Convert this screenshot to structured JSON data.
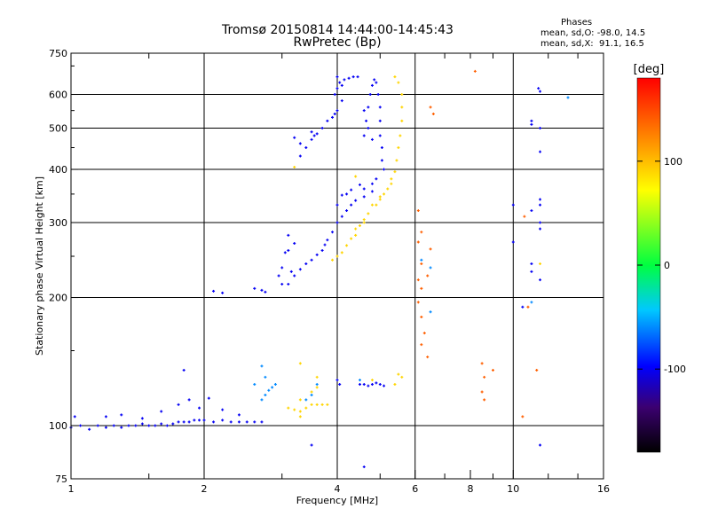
{
  "header": {
    "title_line1": "Tromsø 20150814 14:44:00-14:45:43",
    "title_line2": "RwPretec (Bp)",
    "stats_title": "Phases",
    "stats_o": "mean, sd,O: -98.0, 14.5",
    "stats_x": "mean, sd,X:  91.1, 16.5"
  },
  "colorbar": {
    "label": "[deg]",
    "ticks": [
      {
        "value": 100,
        "label": "100"
      },
      {
        "value": 0,
        "label": "0"
      },
      {
        "value": -100,
        "label": "-100"
      }
    ],
    "range": [
      -180,
      180
    ]
  },
  "chart_data": {
    "type": "scatter",
    "title": "Tromsø 20150814 14:44:00-14:45:43",
    "subtitle": "RwPretec (Bp)",
    "xlabel": "Frequency [MHz]",
    "ylabel": "Stationary phase Virtual Height [km]",
    "xscale": "log",
    "yscale": "log",
    "xlim": [
      1,
      16
    ],
    "ylim": [
      75,
      750
    ],
    "xticks": [
      1,
      2,
      4,
      6,
      8,
      10,
      16
    ],
    "yticks": [
      75,
      100,
      200,
      300,
      400,
      500,
      600,
      750
    ],
    "grid": true,
    "color_variable": "phase [deg]",
    "series": [
      {
        "color_phase": -100,
        "points": [
          [
            1.0,
            99
          ],
          [
            1.05,
            100
          ],
          [
            1.1,
            98
          ],
          [
            1.15,
            100
          ],
          [
            1.2,
            99
          ],
          [
            1.25,
            100
          ],
          [
            1.3,
            99
          ],
          [
            1.35,
            100
          ],
          [
            1.4,
            100
          ],
          [
            1.45,
            101
          ],
          [
            1.5,
            100
          ],
          [
            1.55,
            100
          ],
          [
            1.6,
            101
          ],
          [
            1.65,
            100
          ],
          [
            1.7,
            101
          ],
          [
            1.75,
            102
          ],
          [
            1.8,
            102
          ],
          [
            1.85,
            102
          ],
          [
            1.9,
            103
          ],
          [
            1.95,
            103
          ],
          [
            2.0,
            103
          ],
          [
            2.1,
            102
          ],
          [
            2.2,
            103
          ],
          [
            2.3,
            102
          ],
          [
            2.4,
            102
          ],
          [
            2.5,
            102
          ],
          [
            2.6,
            102
          ],
          [
            2.7,
            102
          ],
          [
            1.2,
            105
          ],
          [
            1.3,
            106
          ],
          [
            1.45,
            104
          ],
          [
            1.6,
            108
          ],
          [
            1.75,
            112
          ],
          [
            1.85,
            115
          ],
          [
            1.95,
            110
          ],
          [
            2.05,
            116
          ],
          [
            2.2,
            109
          ],
          [
            2.4,
            106
          ],
          [
            1.02,
            105
          ],
          [
            1.8,
            135
          ],
          [
            2.1,
            207
          ],
          [
            2.2,
            205
          ],
          [
            2.6,
            210
          ],
          [
            2.7,
            208
          ],
          [
            2.75,
            206
          ],
          [
            2.95,
            225
          ],
          [
            3.0,
            235
          ],
          [
            3.05,
            255
          ],
          [
            3.1,
            280
          ],
          [
            3.2,
            268
          ],
          [
            3.0,
            215
          ],
          [
            3.1,
            215
          ],
          [
            3.15,
            230
          ],
          [
            3.1,
            258
          ],
          [
            3.2,
            225
          ],
          [
            3.3,
            233
          ],
          [
            3.4,
            240
          ],
          [
            3.5,
            245
          ],
          [
            3.6,
            252
          ],
          [
            3.7,
            258
          ],
          [
            3.75,
            266
          ],
          [
            3.8,
            273
          ],
          [
            3.9,
            285
          ],
          [
            4.0,
            300
          ],
          [
            4.1,
            310
          ],
          [
            4.2,
            320
          ],
          [
            4.3,
            330
          ],
          [
            4.4,
            338
          ],
          [
            4.6,
            345
          ],
          [
            4.8,
            355
          ],
          [
            4.0,
            330
          ],
          [
            4.1,
            348
          ],
          [
            4.2,
            350
          ],
          [
            4.3,
            358
          ],
          [
            4.5,
            368
          ],
          [
            4.6,
            360
          ],
          [
            3.3,
            430
          ],
          [
            3.4,
            450
          ],
          [
            3.5,
            470
          ],
          [
            3.55,
            480
          ],
          [
            3.6,
            485
          ],
          [
            3.7,
            500
          ],
          [
            3.8,
            520
          ],
          [
            3.9,
            530
          ],
          [
            3.95,
            540
          ],
          [
            4.0,
            550
          ],
          [
            3.3,
            460
          ],
          [
            3.5,
            490
          ],
          [
            3.2,
            475
          ],
          [
            3.95,
            600
          ],
          [
            4.0,
            620
          ],
          [
            4.05,
            640
          ],
          [
            4.1,
            630
          ],
          [
            4.15,
            650
          ],
          [
            4.25,
            655
          ],
          [
            4.35,
            660
          ],
          [
            4.45,
            660
          ],
          [
            4.0,
            660
          ],
          [
            4.1,
            580
          ],
          [
            4.6,
            480
          ],
          [
            4.65,
            520
          ],
          [
            4.7,
            560
          ],
          [
            4.75,
            600
          ],
          [
            4.8,
            630
          ],
          [
            4.85,
            650
          ],
          [
            4.9,
            640
          ],
          [
            4.95,
            600
          ],
          [
            5.0,
            560
          ],
          [
            5.0,
            520
          ],
          [
            5.0,
            480
          ],
          [
            5.05,
            450
          ],
          [
            5.05,
            420
          ],
          [
            5.1,
            400
          ],
          [
            4.9,
            380
          ],
          [
            4.8,
            370
          ],
          [
            4.6,
            550
          ],
          [
            4.7,
            500
          ],
          [
            4.8,
            470
          ],
          [
            4.5,
            125
          ],
          [
            4.6,
            125
          ],
          [
            4.7,
            124
          ],
          [
            4.8,
            125
          ],
          [
            4.9,
            126
          ],
          [
            5.0,
            125
          ],
          [
            5.1,
            124
          ],
          [
            4.0,
            128
          ],
          [
            4.05,
            125
          ],
          [
            3.5,
            90
          ],
          [
            4.6,
            80
          ],
          [
            10.0,
            330
          ],
          [
            11.0,
            320
          ],
          [
            11.0,
            230
          ],
          [
            11.5,
            220
          ],
          [
            11.0,
            520
          ],
          [
            11.5,
            500
          ],
          [
            11.5,
            610
          ],
          [
            11.4,
            620
          ],
          [
            11.5,
            440
          ],
          [
            11.5,
            340
          ],
          [
            11.5,
            330
          ],
          [
            11.5,
            300
          ],
          [
            10.5,
            190
          ],
          [
            11.5,
            90
          ],
          [
            10.0,
            270
          ],
          [
            11.0,
            510
          ],
          [
            11.5,
            290
          ],
          [
            11.0,
            240
          ]
        ]
      },
      {
        "color_phase": -60,
        "points": [
          [
            2.7,
            115
          ],
          [
            2.75,
            118
          ],
          [
            2.8,
            121
          ],
          [
            2.85,
            123
          ],
          [
            2.9,
            125
          ],
          [
            2.75,
            130
          ],
          [
            2.7,
            138
          ],
          [
            2.6,
            125
          ],
          [
            3.5,
            118
          ],
          [
            3.6,
            125
          ],
          [
            3.4,
            115
          ],
          [
            4.5,
            128
          ],
          [
            6.2,
            245
          ],
          [
            6.5,
            235
          ],
          [
            6.5,
            185
          ],
          [
            11.0,
            195
          ],
          [
            13.3,
            590
          ]
        ]
      },
      {
        "color_phase": 90,
        "points": [
          [
            3.1,
            110
          ],
          [
            3.2,
            109
          ],
          [
            3.3,
            108
          ],
          [
            3.4,
            110
          ],
          [
            3.5,
            112
          ],
          [
            3.6,
            112
          ],
          [
            3.7,
            112
          ],
          [
            3.8,
            112
          ],
          [
            3.3,
            115
          ],
          [
            3.5,
            120
          ],
          [
            3.6,
            130
          ],
          [
            3.6,
            123
          ],
          [
            3.3,
            105
          ],
          [
            3.9,
            245
          ],
          [
            4.0,
            250
          ],
          [
            4.1,
            255
          ],
          [
            4.2,
            265
          ],
          [
            4.3,
            275
          ],
          [
            4.4,
            280
          ],
          [
            4.5,
            295
          ],
          [
            4.6,
            305
          ],
          [
            4.7,
            315
          ],
          [
            4.8,
            330
          ],
          [
            4.9,
            330
          ],
          [
            5.0,
            340
          ],
          [
            5.1,
            350
          ],
          [
            5.2,
            360
          ],
          [
            5.3,
            370
          ],
          [
            5.4,
            395
          ],
          [
            5.45,
            420
          ],
          [
            5.5,
            450
          ],
          [
            5.55,
            480
          ],
          [
            5.6,
            520
          ],
          [
            5.6,
            560
          ],
          [
            5.6,
            600
          ],
          [
            5.5,
            640
          ],
          [
            5.3,
            380
          ],
          [
            5.0,
            345
          ],
          [
            4.6,
            300
          ],
          [
            4.4,
            290
          ],
          [
            5.4,
            660
          ],
          [
            3.3,
            140
          ],
          [
            3.2,
            405
          ],
          [
            5.6,
            130
          ],
          [
            5.5,
            132
          ],
          [
            4.8,
            128
          ],
          [
            5.4,
            125
          ],
          [
            4.4,
            385
          ],
          [
            11.5,
            240
          ]
        ]
      },
      {
        "color_phase": 140,
        "points": [
          [
            6.1,
            320
          ],
          [
            6.2,
            285
          ],
          [
            6.1,
            270
          ],
          [
            6.2,
            240
          ],
          [
            6.1,
            220
          ],
          [
            6.2,
            210
          ],
          [
            6.1,
            195
          ],
          [
            6.2,
            180
          ],
          [
            6.3,
            165
          ],
          [
            6.2,
            155
          ],
          [
            6.4,
            145
          ],
          [
            6.5,
            560
          ],
          [
            6.6,
            540
          ],
          [
            6.5,
            260
          ],
          [
            6.4,
            225
          ],
          [
            8.2,
            680
          ],
          [
            8.5,
            140
          ],
          [
            8.6,
            130
          ],
          [
            8.5,
            120
          ],
          [
            8.6,
            115
          ],
          [
            9.0,
            135
          ],
          [
            10.5,
            105
          ],
          [
            11.3,
            135
          ],
          [
            10.6,
            310
          ],
          [
            10.8,
            190
          ]
        ]
      }
    ]
  }
}
